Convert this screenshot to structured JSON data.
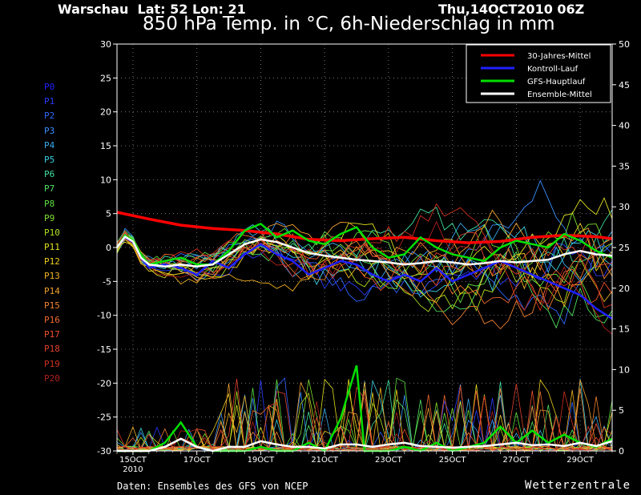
{
  "header": {
    "location": "Warschau  Lat: 52 Lon: 21",
    "datetime": "Thu,14OCT2010 06Z",
    "title": "850 hPa Temp. in °C, 6h-Niederschlag in mm"
  },
  "footer": {
    "source": "Daten: Ensembles des GFS von NCEP",
    "brand": "Wetterzentrale"
  },
  "runs": [
    {
      "label": "P0",
      "color": "#2020ff"
    },
    {
      "label": "P1",
      "color": "#2a3cff"
    },
    {
      "label": "P2",
      "color": "#2f66ff"
    },
    {
      "label": "P3",
      "color": "#3a90ff"
    },
    {
      "label": "P4",
      "color": "#3aaaf0"
    },
    {
      "label": "P5",
      "color": "#3ccfe0"
    },
    {
      "label": "P6",
      "color": "#40e0a0"
    },
    {
      "label": "P7",
      "color": "#50e060"
    },
    {
      "label": "P8",
      "color": "#60e040"
    },
    {
      "label": "P9",
      "color": "#80e030"
    },
    {
      "label": "P10",
      "color": "#b0e020"
    },
    {
      "label": "P11",
      "color": "#e0e020"
    },
    {
      "label": "P12",
      "color": "#f0d020"
    },
    {
      "label": "P13",
      "color": "#f0b020"
    },
    {
      "label": "P14",
      "color": "#f0a030"
    },
    {
      "label": "P15",
      "color": "#f08030"
    },
    {
      "label": "P16",
      "color": "#f06a30"
    },
    {
      "label": "P17",
      "color": "#f05030"
    },
    {
      "label": "P18",
      "color": "#e04030"
    },
    {
      "label": "P19",
      "color": "#d03020"
    },
    {
      "label": "P20",
      "color": "#b02020"
    }
  ],
  "chart_data": {
    "type": "line",
    "x_labels": [
      "15OCT",
      "17OCT",
      "19OCT",
      "21OCT",
      "23OCT",
      "25OCT",
      "27OCT",
      "29OCT"
    ],
    "x_sublabel": "2010",
    "ylim_left": [
      -30,
      30
    ],
    "yticks_left": [
      30,
      25,
      20,
      15,
      10,
      5,
      0,
      -5,
      -10,
      -15,
      -20,
      -25,
      -30
    ],
    "ylim_right": [
      0,
      50
    ],
    "yticks_right": [
      50,
      45,
      40,
      35,
      30,
      25,
      20,
      15,
      10,
      5,
      0
    ],
    "x_range_days": [
      0,
      15.5
    ],
    "grid": true,
    "legend_position": "top-right",
    "legend": [
      {
        "name": "30-Jahres-Mittel",
        "color": "#ff0000"
      },
      {
        "name": "Kontroll-Lauf",
        "color": "#2020ff"
      },
      {
        "name": "GFS-Hauptlauf",
        "color": "#00e000"
      },
      {
        "name": "Ensemble-Mittel",
        "color": "#ffffff"
      }
    ],
    "series": [
      {
        "name": "30-Jahres-Mittel",
        "color": "#ff0000",
        "width": 3.5,
        "x": [
          0,
          1,
          2,
          3,
          4,
          5,
          6,
          7,
          8,
          9,
          10,
          11,
          12,
          13,
          14,
          15,
          15.5
        ],
        "y": [
          5.2,
          4.2,
          3.3,
          2.8,
          2.5,
          2.0,
          1.2,
          1.0,
          1.3,
          1.5,
          1.0,
          0.7,
          0.9,
          1.5,
          1.8,
          1.6,
          1.3
        ]
      },
      {
        "name": "Kontroll-Lauf",
        "color": "#2020ff",
        "width": 2.5,
        "x": [
          0,
          0.25,
          0.5,
          0.75,
          1,
          1.5,
          2,
          2.5,
          3,
          3.5,
          4,
          4.5,
          5,
          5.5,
          6,
          6.5,
          7,
          7.5,
          8,
          8.5,
          9,
          9.5,
          10,
          10.5,
          11,
          11.5,
          12,
          12.5,
          13,
          13.5,
          14,
          14.5,
          15,
          15.5
        ],
        "y": [
          0,
          1.5,
          0.8,
          -1.5,
          -3,
          -2.5,
          -3,
          -4,
          -2,
          -3,
          -1,
          0.5,
          -1,
          -2,
          -4,
          -3,
          -2,
          -2.5,
          -4,
          -5,
          -4,
          -5,
          -3,
          -5,
          -4,
          -3,
          -2,
          -3,
          -4,
          -5,
          -6,
          -7,
          -9,
          -10.5
        ]
      },
      {
        "name": "GFS-Hauptlauf",
        "color": "#00e000",
        "width": 2.5,
        "x": [
          0,
          0.25,
          0.5,
          0.75,
          1,
          1.5,
          2,
          2.5,
          3,
          3.5,
          4,
          4.5,
          5,
          5.5,
          6,
          6.5,
          7,
          7.5,
          8,
          8.5,
          9,
          9.5,
          10,
          10.5,
          11,
          11.5,
          12,
          12.5,
          13,
          13.5,
          14,
          14.5,
          15,
          15.5
        ],
        "y": [
          0,
          1.8,
          1.0,
          -1.0,
          -2.5,
          -2,
          -1.5,
          -2.5,
          -2.5,
          -0.5,
          2.5,
          3.5,
          1.5,
          2.5,
          1,
          0.5,
          2,
          3,
          0,
          -1.5,
          -1,
          1.5,
          0,
          -1,
          -1.5,
          -2,
          0,
          1,
          0.5,
          0,
          2,
          1,
          -0.5,
          -1.5
        ]
      },
      {
        "name": "Ensemble-Mittel",
        "color": "#ffffff",
        "width": 2.5,
        "x": [
          0,
          0.25,
          0.5,
          0.75,
          1,
          1.5,
          2,
          2.5,
          3,
          3.5,
          4,
          4.5,
          5,
          5.5,
          6,
          6.5,
          7,
          7.5,
          8,
          8.5,
          9,
          9.5,
          10,
          10.5,
          11,
          11.5,
          12,
          12.5,
          13,
          13.5,
          14,
          14.5,
          15,
          15.5
        ],
        "y": [
          0,
          1.6,
          0.9,
          -1.5,
          -2.5,
          -2.8,
          -2.5,
          -2.8,
          -2.5,
          -1,
          0.5,
          1.2,
          0.8,
          0,
          -0.8,
          -1.2,
          -1.5,
          -1.8,
          -2,
          -2.2,
          -2.5,
          -2.3,
          -2,
          -2.2,
          -2.5,
          -2.3,
          -2,
          -2.2,
          -2,
          -1.8,
          -1,
          -0.5,
          -1,
          -1.2
        ]
      }
    ],
    "precip_series": [
      {
        "name": "GFS-Hauptlauf Niederschlag",
        "color": "#00e000",
        "width": 2.5,
        "x": [
          0,
          1,
          1.5,
          2,
          2.5,
          3,
          3.5,
          4,
          4.5,
          5,
          5.5,
          6,
          6.5,
          7,
          7.5,
          7.75,
          8,
          8.5,
          9,
          9.5,
          10,
          10.5,
          11,
          11.5,
          12,
          12.5,
          13,
          13.5,
          14,
          14.5,
          15,
          15.5
        ],
        "y": [
          0,
          0,
          1,
          3.5,
          0.5,
          0,
          0,
          0,
          0.5,
          0,
          0,
          1,
          0,
          4,
          10.5,
          0,
          0,
          0,
          0.5,
          0,
          1,
          0,
          0.5,
          1,
          3,
          1,
          2.5,
          1,
          2,
          1,
          0.5,
          1.5
        ]
      },
      {
        "name": "Ensemble-Mittel Niederschlag",
        "color": "#ffffff",
        "width": 2.5,
        "x": [
          0,
          1,
          1.5,
          2,
          2.5,
          3,
          3.5,
          4,
          4.5,
          5,
          5.5,
          6,
          6.5,
          7,
          7.5,
          8,
          8.5,
          9,
          9.5,
          10,
          10.5,
          11,
          11.5,
          12,
          12.5,
          13,
          13.5,
          14,
          14.5,
          15,
          15.5
        ],
        "y": [
          0,
          0,
          0.5,
          1.5,
          0.5,
          0,
          0.5,
          0.5,
          1.2,
          0.8,
          0.5,
          0.5,
          0.3,
          0.8,
          0.8,
          0.5,
          0.8,
          1,
          0.6,
          0.5,
          0.4,
          0.5,
          0.6,
          0.8,
          1,
          0.7,
          0.8,
          0.6,
          1,
          0.6,
          1.2
        ]
      }
    ]
  }
}
